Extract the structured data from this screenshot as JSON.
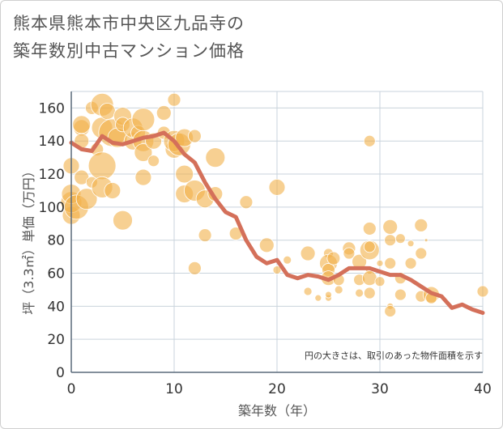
{
  "chart_data": {
    "type": "scatter",
    "title_line1": "熊本県熊本市中央区九品寺の",
    "title_line2": "築年数別中古マンション価格",
    "xlabel": "築年数（年）",
    "ylabel": "坪（3.3㎡）単価（万円）",
    "note": "円の大きさは、取引のあった物件面積を示す",
    "xlim": [
      0,
      40
    ],
    "ylim": [
      0,
      170
    ],
    "xticks": [
      "0",
      "10",
      "20",
      "30",
      "40"
    ],
    "yticks": [
      "0",
      "20",
      "40",
      "60",
      "80",
      "100",
      "120",
      "140",
      "160"
    ],
    "grid": true,
    "colors": {
      "bubble": "#f2b04a",
      "line": "#d4705a",
      "grid": "#c9d3dc",
      "axis": "#5a6a7a"
    },
    "series": [
      {
        "kind": "bubble",
        "points": [
          {
            "x": 0,
            "y": 95,
            "s": 11
          },
          {
            "x": 0,
            "y": 103,
            "s": 13
          },
          {
            "x": 0,
            "y": 108,
            "s": 12
          },
          {
            "x": 0,
            "y": 125,
            "s": 10
          },
          {
            "x": 0.5,
            "y": 100,
            "s": 15
          },
          {
            "x": 1,
            "y": 148,
            "s": 10
          },
          {
            "x": 1,
            "y": 150,
            "s": 11
          },
          {
            "x": 1,
            "y": 140,
            "s": 9
          },
          {
            "x": 1,
            "y": 118,
            "s": 9
          },
          {
            "x": 1.5,
            "y": 105,
            "s": 13
          },
          {
            "x": 2,
            "y": 160,
            "s": 8
          },
          {
            "x": 2,
            "y": 115,
            "s": 7
          },
          {
            "x": 2.5,
            "y": 135,
            "s": 8
          },
          {
            "x": 3,
            "y": 162,
            "s": 14
          },
          {
            "x": 3,
            "y": 148,
            "s": 13
          },
          {
            "x": 3,
            "y": 125,
            "s": 17
          },
          {
            "x": 3,
            "y": 112,
            "s": 13
          },
          {
            "x": 3.5,
            "y": 158,
            "s": 10
          },
          {
            "x": 4,
            "y": 145,
            "s": 17
          },
          {
            "x": 4,
            "y": 110,
            "s": 10
          },
          {
            "x": 4.5,
            "y": 142,
            "s": 12
          },
          {
            "x": 5,
            "y": 155,
            "s": 11
          },
          {
            "x": 5,
            "y": 92,
            "s": 12
          },
          {
            "x": 5,
            "y": 150,
            "s": 9
          },
          {
            "x": 6,
            "y": 140,
            "s": 11
          },
          {
            "x": 6,
            "y": 148,
            "s": 12
          },
          {
            "x": 6.5,
            "y": 145,
            "s": 9
          },
          {
            "x": 7,
            "y": 153,
            "s": 14
          },
          {
            "x": 7,
            "y": 140,
            "s": 13
          },
          {
            "x": 7,
            "y": 133,
            "s": 11
          },
          {
            "x": 7,
            "y": 118,
            "s": 10
          },
          {
            "x": 8,
            "y": 140,
            "s": 10
          },
          {
            "x": 8,
            "y": 128,
            "s": 7
          },
          {
            "x": 9,
            "y": 157,
            "s": 9
          },
          {
            "x": 9,
            "y": 145,
            "s": 8
          },
          {
            "x": 10,
            "y": 165,
            "s": 8
          },
          {
            "x": 10,
            "y": 135,
            "s": 11
          },
          {
            "x": 10,
            "y": 140,
            "s": 13
          },
          {
            "x": 10.5,
            "y": 138,
            "s": 14
          },
          {
            "x": 11,
            "y": 142,
            "s": 11
          },
          {
            "x": 11,
            "y": 120,
            "s": 11
          },
          {
            "x": 11,
            "y": 108,
            "s": 11
          },
          {
            "x": 12,
            "y": 110,
            "s": 13
          },
          {
            "x": 12,
            "y": 143,
            "s": 8
          },
          {
            "x": 12,
            "y": 63,
            "s": 8
          },
          {
            "x": 13,
            "y": 105,
            "s": 11
          },
          {
            "x": 13,
            "y": 83,
            "s": 8
          },
          {
            "x": 14,
            "y": 130,
            "s": 12
          },
          {
            "x": 14,
            "y": 108,
            "s": 9
          },
          {
            "x": 16,
            "y": 84,
            "s": 8
          },
          {
            "x": 17,
            "y": 103,
            "s": 8
          },
          {
            "x": 19,
            "y": 77,
            "s": 9
          },
          {
            "x": 20,
            "y": 112,
            "s": 10
          },
          {
            "x": 20,
            "y": 62,
            "s": 5
          },
          {
            "x": 21,
            "y": 68,
            "s": 5
          },
          {
            "x": 23,
            "y": 72,
            "s": 9
          },
          {
            "x": 23,
            "y": 49,
            "s": 5
          },
          {
            "x": 24,
            "y": 45,
            "s": 4
          },
          {
            "x": 25,
            "y": 72,
            "s": 6
          },
          {
            "x": 25,
            "y": 66,
            "s": 11
          },
          {
            "x": 25,
            "y": 62,
            "s": 8
          },
          {
            "x": 25,
            "y": 57,
            "s": 9
          },
          {
            "x": 25,
            "y": 45,
            "s": 4
          },
          {
            "x": 25,
            "y": 47,
            "s": 4
          },
          {
            "x": 25.5,
            "y": 69,
            "s": 8
          },
          {
            "x": 26,
            "y": 56,
            "s": 7
          },
          {
            "x": 26,
            "y": 50,
            "s": 5
          },
          {
            "x": 27,
            "y": 75,
            "s": 8
          },
          {
            "x": 27,
            "y": 72,
            "s": 7
          },
          {
            "x": 28,
            "y": 67,
            "s": 9
          },
          {
            "x": 28,
            "y": 56,
            "s": 7
          },
          {
            "x": 28,
            "y": 48,
            "s": 5
          },
          {
            "x": 29,
            "y": 140,
            "s": 7
          },
          {
            "x": 29,
            "y": 87,
            "s": 8
          },
          {
            "x": 29,
            "y": 74,
            "s": 12
          },
          {
            "x": 29,
            "y": 76,
            "s": 7
          },
          {
            "x": 29,
            "y": 62,
            "s": 5
          },
          {
            "x": 29,
            "y": 57,
            "s": 9
          },
          {
            "x": 29,
            "y": 48,
            "s": 7
          },
          {
            "x": 30,
            "y": 66,
            "s": 4
          },
          {
            "x": 30,
            "y": 55,
            "s": 6
          },
          {
            "x": 31,
            "y": 88,
            "s": 9
          },
          {
            "x": 31,
            "y": 80,
            "s": 7
          },
          {
            "x": 31,
            "y": 66,
            "s": 7
          },
          {
            "x": 31,
            "y": 40,
            "s": 4
          },
          {
            "x": 31,
            "y": 37,
            "s": 7
          },
          {
            "x": 32,
            "y": 81,
            "s": 6
          },
          {
            "x": 32,
            "y": 57,
            "s": 7
          },
          {
            "x": 32,
            "y": 47,
            "s": 7
          },
          {
            "x": 33,
            "y": 78,
            "s": 4
          },
          {
            "x": 33,
            "y": 66,
            "s": 7
          },
          {
            "x": 34,
            "y": 89,
            "s": 8
          },
          {
            "x": 34,
            "y": 72,
            "s": 7
          },
          {
            "x": 34,
            "y": 46,
            "s": 7
          },
          {
            "x": 34.5,
            "y": 80,
            "s": 2
          },
          {
            "x": 35,
            "y": 47,
            "s": 10
          },
          {
            "x": 35,
            "y": 45,
            "s": 7
          },
          {
            "x": 40,
            "y": 49,
            "s": 7
          }
        ]
      },
      {
        "kind": "line",
        "x": [
          0,
          1,
          2,
          3,
          4,
          5,
          6,
          7,
          8,
          9,
          10,
          11,
          12,
          13,
          14,
          15,
          16,
          17,
          18,
          19,
          20,
          21,
          22,
          23,
          24,
          25,
          26,
          27,
          28,
          29,
          30,
          31,
          32,
          33,
          34,
          35,
          36,
          37,
          38,
          39,
          40
        ],
        "values": [
          139,
          135,
          134,
          143,
          139,
          138,
          140,
          142,
          143,
          145,
          140,
          132,
          127,
          115,
          105,
          97,
          94,
          80,
          70,
          66,
          68,
          59,
          57,
          59,
          58,
          56,
          59,
          63,
          63,
          63,
          61,
          59,
          59,
          56,
          52,
          48,
          46,
          39,
          41,
          38,
          36
        ]
      }
    ]
  }
}
